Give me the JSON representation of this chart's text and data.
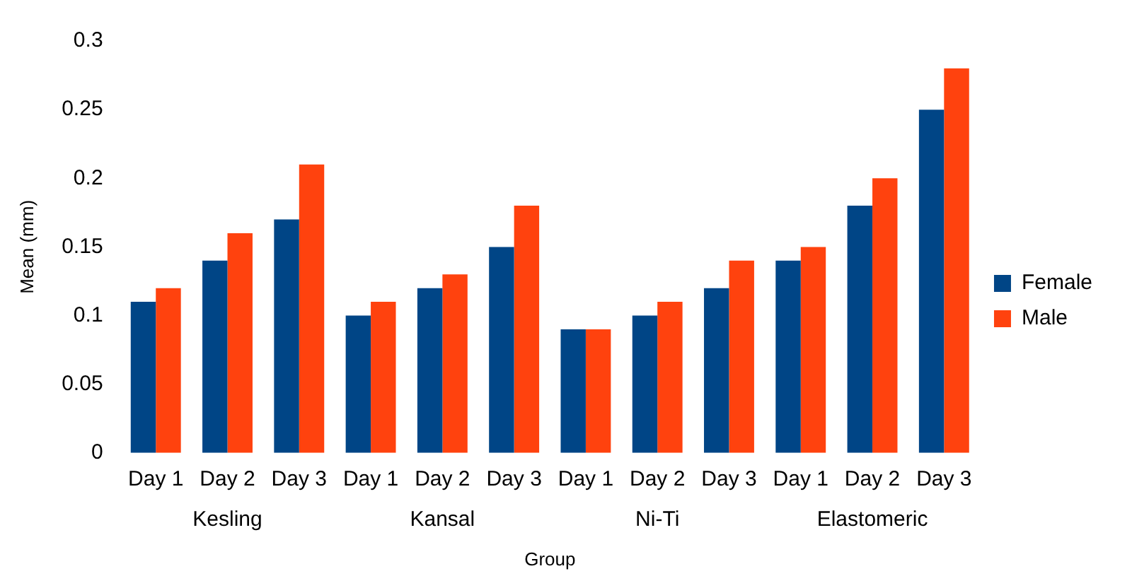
{
  "chart_data": {
    "type": "bar",
    "xlabel": "Group",
    "ylabel": "Mean (mm)",
    "categories": [
      "Day 1",
      "Day 2",
      "Day 3",
      "Day 1",
      "Day 2",
      "Day 3",
      "Day 1",
      "Day 2",
      "Day 3",
      "Day 1",
      "Day 2",
      "Day 3"
    ],
    "series": [
      {
        "name": "Female",
        "color": "#004586",
        "values": [
          0.11,
          0.14,
          0.17,
          0.1,
          0.12,
          0.15,
          0.09,
          0.1,
          0.12,
          0.14,
          0.18,
          0.25
        ]
      },
      {
        "name": "Male",
        "color": "#ff420e",
        "values": [
          0.12,
          0.16,
          0.21,
          0.11,
          0.13,
          0.18,
          0.09,
          0.11,
          0.14,
          0.15,
          0.2,
          0.28
        ]
      }
    ],
    "annotations": [
      "Kesling",
      "Kansal",
      "Ni-Ti",
      "Elastomeric"
    ],
    "ylim": [
      0,
      0.3
    ],
    "yticks": [
      0,
      0.05,
      0.1,
      0.15,
      0.2,
      0.25,
      0.3
    ],
    "grid": false,
    "legend": "right"
  }
}
